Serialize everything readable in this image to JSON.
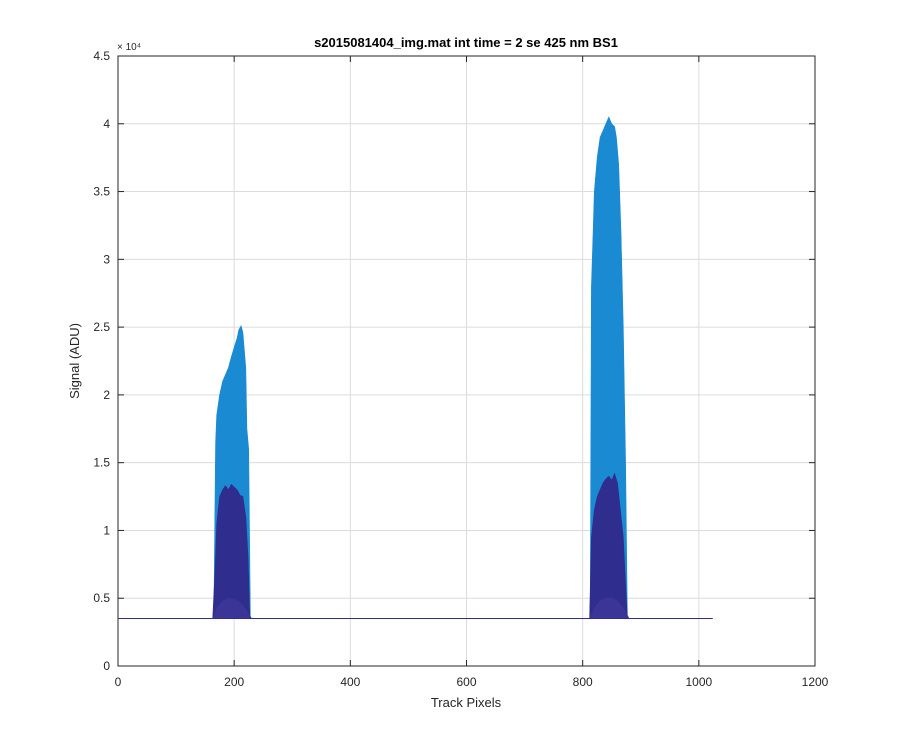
{
  "chart_data": {
    "type": "area",
    "title": "s2015081404_img.mat int time = 2 se  425 nm BS1",
    "xlabel": "Track Pixels",
    "ylabel": "Signal (ADU)",
    "xlim": [
      0,
      1200
    ],
    "ylim": [
      0,
      45000
    ],
    "x_ticks": [
      0,
      200,
      400,
      600,
      800,
      1000,
      1200
    ],
    "x_tick_labels": [
      "0",
      "200",
      "400",
      "600",
      "800",
      "1000",
      "1200"
    ],
    "y_ticks": [
      0,
      5000,
      10000,
      15000,
      20000,
      25000,
      30000,
      35000,
      40000,
      45000
    ],
    "y_tick_labels": [
      "0",
      "0.5",
      "1",
      "1.5",
      "2",
      "2.5",
      "3",
      "3.5",
      "4",
      "4.5"
    ],
    "y_exponent_label": "× 10⁴",
    "grid": true,
    "baseline": 3500,
    "x_extent": [
      1,
      1024
    ],
    "series": [
      {
        "color": "#1a8bd2",
        "x": [
          165,
          168,
          170,
          175,
          180,
          185,
          190,
          195,
          200,
          205,
          208,
          212,
          215,
          220,
          222,
          225,
          228,
          861,
          813,
          815,
          818,
          820,
          825,
          830,
          835,
          840,
          845,
          850,
          855,
          858,
          862,
          866,
          870,
          874,
          877,
          879
        ],
        "y": [
          3500,
          16500,
          18500,
          20000,
          21000,
          21500,
          22000,
          22800,
          23500,
          24200,
          24800,
          25100,
          24600,
          22000,
          17500,
          16000,
          3500,
          3500,
          3500,
          28000,
          32000,
          35000,
          37500,
          39000,
          39500,
          40000,
          40500,
          40000,
          39800,
          39000,
          37000,
          32000,
          25000,
          15000,
          3500,
          3500
        ]
      },
      {
        "color": "#2f2d8e",
        "x": [
          163,
          167,
          170,
          175,
          180,
          185,
          190,
          195,
          200,
          205,
          210,
          215,
          220,
          224,
          227,
          230,
          812,
          815,
          820,
          825,
          830,
          835,
          840,
          845,
          850,
          855,
          860,
          865,
          870,
          874,
          877,
          880
        ],
        "y": [
          3500,
          7000,
          10500,
          12500,
          13000,
          13300,
          13000,
          13400,
          13200,
          13000,
          12600,
          12500,
          11000,
          8000,
          3500,
          3500,
          3500,
          9500,
          11500,
          12500,
          13000,
          13500,
          13800,
          14000,
          13700,
          14200,
          13500,
          11500,
          9500,
          6000,
          3500,
          3500
        ]
      },
      {
        "color": "#3b3598",
        "x": [
          163,
          170,
          180,
          190,
          200,
          210,
          220,
          230,
          812,
          820,
          830,
          840,
          850,
          860,
          870,
          880
        ],
        "y": [
          3500,
          4300,
          4800,
          5000,
          4900,
          4700,
          4200,
          3500,
          3500,
          4300,
          4800,
          5000,
          5000,
          4800,
          4300,
          3500
        ]
      }
    ]
  }
}
